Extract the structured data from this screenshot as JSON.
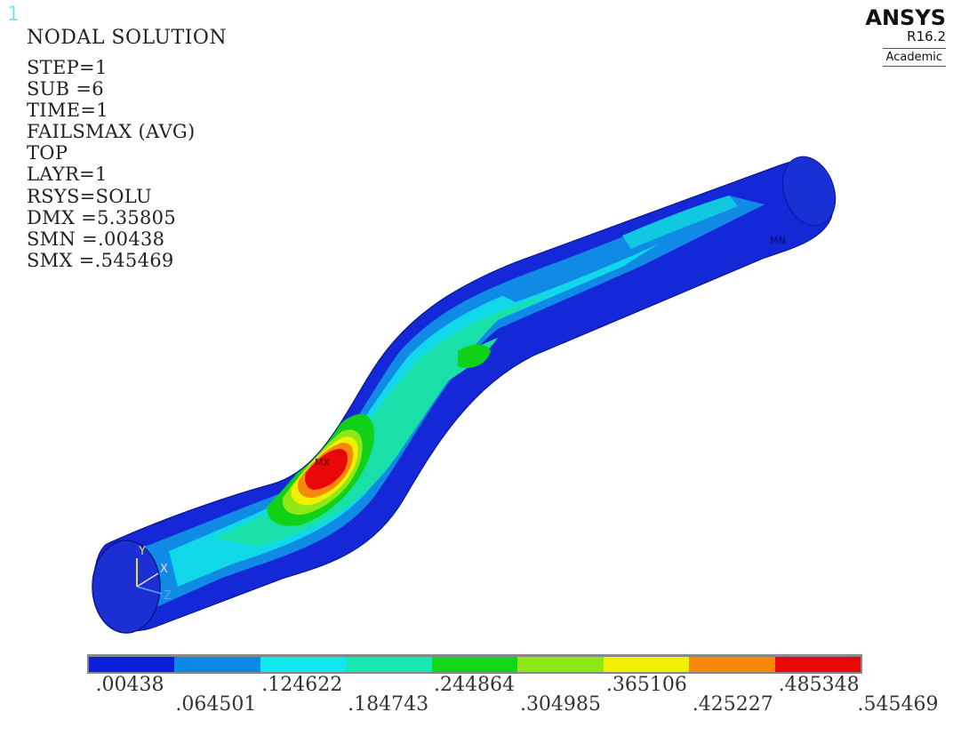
{
  "window_number": "1",
  "solution_info": {
    "title": "NODAL SOLUTION",
    "lines": [
      "STEP=1",
      "SUB =6",
      "TIME=1",
      "FAILSMAX (AVG)",
      "TOP",
      "LAYR=1",
      "RSYS=SOLU",
      "DMX =5.35805",
      "SMN =.00438",
      "SMX =.545469"
    ]
  },
  "brand": {
    "name": "ANSYS",
    "version": "R16.2",
    "edition": "Academic"
  },
  "model_labels": {
    "max_marker": "MX",
    "min_marker": "MN"
  },
  "triad": {
    "y_label": "Y",
    "x_label": "X",
    "z_label": "Z"
  },
  "legend": {
    "colors": [
      "#0a1fd6",
      "#0a8ae6",
      "#10e8f2",
      "#18e8b0",
      "#10d818",
      "#8ee818",
      "#f0f000",
      "#f88808",
      "#e80808"
    ],
    "values": [
      ".00438",
      ".064501",
      ".124622",
      ".184743",
      ".244864",
      ".304985",
      ".365106",
      ".425227",
      ".485348",
      ".545469"
    ]
  }
}
